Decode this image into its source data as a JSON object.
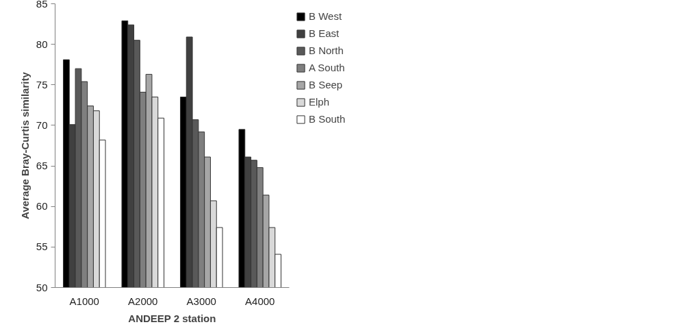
{
  "chart_data": {
    "type": "bar",
    "xlabel": "ANDEEP 2 station",
    "ylabel": "Average Bray-Curtis similarity",
    "categories": [
      "A1000",
      "A2000",
      "A3000",
      "A4000"
    ],
    "ylim": [
      50,
      85
    ],
    "yticks": [
      50,
      55,
      60,
      65,
      70,
      75,
      80,
      85
    ],
    "grid": false,
    "legend": "right",
    "series": [
      {
        "name": "B West",
        "color": "#000000",
        "values": [
          78.1,
          82.9,
          73.5,
          69.5
        ]
      },
      {
        "name": "B East",
        "color": "#404040",
        "values": [
          70.1,
          82.4,
          80.9,
          66.1
        ]
      },
      {
        "name": "B North",
        "color": "#595959",
        "values": [
          77.0,
          80.5,
          70.7,
          65.7
        ]
      },
      {
        "name": "A South",
        "color": "#7f7f7f",
        "values": [
          75.4,
          74.1,
          69.2,
          64.8
        ]
      },
      {
        "name": "B Seep",
        "color": "#a6a6a6",
        "values": [
          72.4,
          76.3,
          66.1,
          61.4
        ]
      },
      {
        "name": "Elph",
        "color": "#d9d9d9",
        "values": [
          71.8,
          73.5,
          60.7,
          57.4
        ]
      },
      {
        "name": "B South",
        "color": "#ffffff",
        "values": [
          68.2,
          70.9,
          57.4,
          54.1
        ]
      }
    ]
  }
}
